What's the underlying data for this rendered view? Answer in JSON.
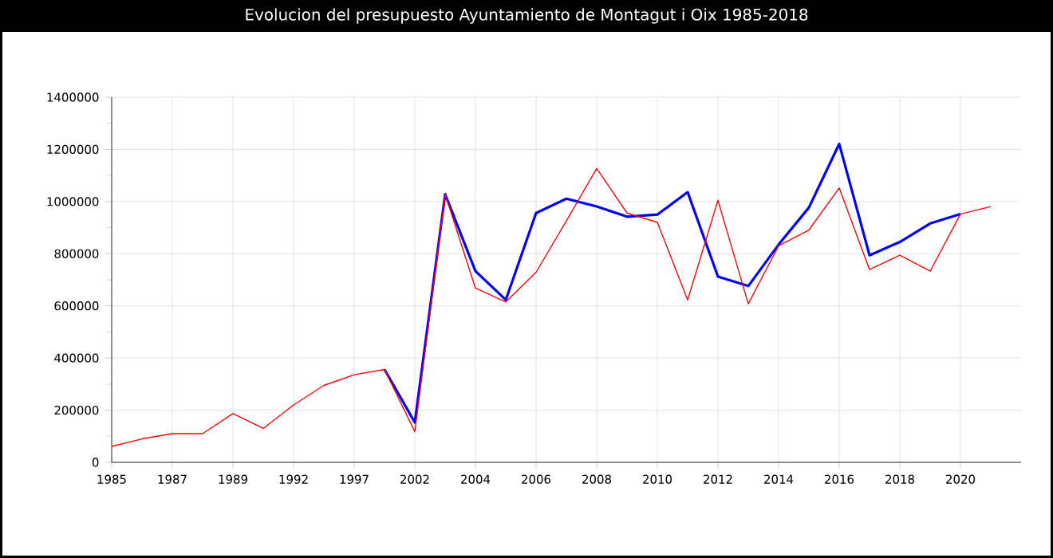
{
  "chart_data": {
    "type": "line",
    "title": "Evolucion del presupuesto Ayuntamiento de Montagut i Oix 1985-2018",
    "categories": [
      "1985",
      null,
      "1987",
      null,
      "1989",
      null,
      "1992",
      null,
      "1997",
      null,
      "2002",
      null,
      "2004",
      null,
      "2006",
      null,
      "2008",
      null,
      "2010",
      null,
      "2012",
      null,
      "2014",
      null,
      "2016",
      null,
      "2018",
      null,
      "2020",
      null
    ],
    "series": [
      {
        "color": "#0000ff",
        "values": [
          null,
          null,
          null,
          null,
          null,
          null,
          null,
          null,
          null,
          356000,
          153000,
          1028000,
          733000,
          623000,
          956000,
          1011000,
          981000,
          942000,
          950000,
          1036000,
          712000,
          676000,
          835000,
          977000,
          1221000,
          794000,
          845000,
          916000,
          952000,
          null
        ]
      },
      {
        "color": "#ff0000",
        "values": [
          61000,
          90000,
          110000,
          110000,
          187000,
          130000,
          220000,
          295000,
          336000,
          356000,
          118000,
          1028000,
          668000,
          615000,
          729000,
          926000,
          1127000,
          956000,
          920000,
          623000,
          1005000,
          608000,
          830000,
          891000,
          1052000,
          739000,
          794000,
          733000,
          952000,
          981000
        ]
      }
    ],
    "ylim": [
      0,
      1400000
    ],
    "yticks": [
      0,
      200000,
      400000,
      600000,
      800000,
      1000000,
      1200000,
      1400000
    ],
    "grid": true,
    "marker": "none",
    "line_style": "solid"
  }
}
